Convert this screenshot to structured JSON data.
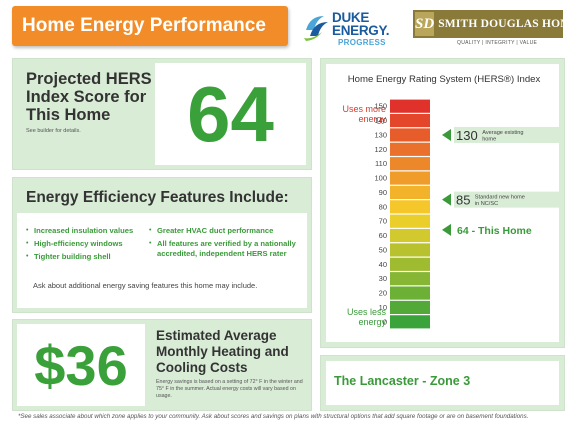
{
  "header": {
    "title": "Home Energy Performance",
    "duke_logo": {
      "name": "DUKE ENERGY.",
      "sub": "PROGRESS",
      "icon": "duke-energy-mark-icon"
    },
    "builder_logo": {
      "mark": "SD",
      "name": "SMITH DOUGLAS HOMES",
      "tagline": "QUALITY | INTEGRITY | VALUE"
    }
  },
  "hers_panel": {
    "title": "Projected HERS Index Score for This Home",
    "note": "See builder for details.",
    "score": "64"
  },
  "features_panel": {
    "title": "Energy Efficiency Features Include:",
    "left_items": [
      "Increased insulation values",
      "High-efficiency windows",
      "Tighter building shell"
    ],
    "right_items": [
      "Greater HVAC duct performance",
      "All features are verified by a nationally accredited, independent HERS rater"
    ],
    "ask": "Ask about additional energy saving features this home may include."
  },
  "cost_panel": {
    "amount": "$36",
    "title": "Estimated Average Monthly Heating and Cooling Costs",
    "note": "Energy savings is based on a setting of 72° F in the winter and 75° F in the summer. Actual energy costs will vary based on usage."
  },
  "chart_data": {
    "type": "scale",
    "title": "Home Energy Rating System (HERS®) Index",
    "top_label": "Uses more energy",
    "bottom_label": "Uses less energy",
    "ticks": [
      150,
      140,
      130,
      120,
      110,
      100,
      90,
      80,
      70,
      60,
      50,
      40,
      30,
      20,
      10,
      0
    ],
    "markers": [
      {
        "value": 130,
        "number": "130",
        "caption": "Average existing home"
      },
      {
        "value": 85,
        "number": "85",
        "caption": "Standard new home in NC/SC"
      },
      {
        "value": 64,
        "number": "64",
        "caption": "64 - This Home"
      }
    ],
    "colors": {
      "high": "#e0312b",
      "mid": "#f7d22a",
      "low": "#3aa33a",
      "marker": "#3a9a3a"
    }
  },
  "plan_panel": {
    "name": "The Lancaster - Zone 3"
  },
  "footnote": "*See sales associate about which zone applies to your community.  Ask about scores and savings on plans with structural options that add square footage or are on basement foundations."
}
